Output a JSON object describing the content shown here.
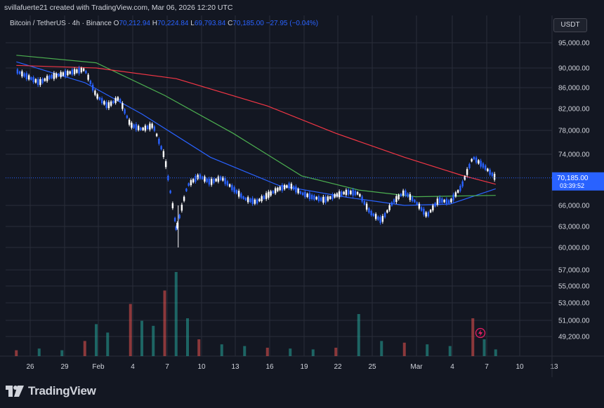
{
  "header": {
    "credit": "svillafuerte21 created with TradingView.com, Mar 06, 2026 12:20 UTC"
  },
  "legend": {
    "symbol": "Bitcoin / TetherUS · 4h · Binance",
    "o_label": "O",
    "o_value": "70,212.94",
    "h_label": "H",
    "h_value": "70,224.84",
    "l_label": "L",
    "l_value": "69,793.84",
    "c_label": "C",
    "c_value": "70,185.00",
    "change": "−27.95 (−0.04%)"
  },
  "quote_currency": "USDT",
  "footer": {
    "brand": "TradingView",
    "logo_icon": "tradingview-logo-icon"
  },
  "colors": {
    "background": "#131722",
    "grid": "#2a2e39",
    "up": "#ffffff",
    "down": "#2962ff",
    "ma_short": "#2962ff",
    "ma_mid": "#4caf50",
    "ma_long": "#f23645",
    "vol_up": "#26a69a",
    "vol_down": "#ef5350",
    "price_label_bg": "#2962ff"
  },
  "chart_data": {
    "type": "candlestick",
    "symbol": "BTC/USDT",
    "timeframe": "4h",
    "y_axis_scale": "log",
    "y_ticks": [
      {
        "value": 95000,
        "label": "95,000.00"
      },
      {
        "value": 90000,
        "label": "90,000.00"
      },
      {
        "value": 86000,
        "label": "86,000.00"
      },
      {
        "value": 82000,
        "label": "82,000.00"
      },
      {
        "value": 78000,
        "label": "78,000.00"
      },
      {
        "value": 74000,
        "label": "74,000.00"
      },
      {
        "value": 66000,
        "label": "66,000.00"
      },
      {
        "value": 63000,
        "label": "63,000.00"
      },
      {
        "value": 60000,
        "label": "60,000.00"
      },
      {
        "value": 57000,
        "label": "57,000.00"
      },
      {
        "value": 55000,
        "label": "55,000.00"
      },
      {
        "value": 53000,
        "label": "53,000.00"
      },
      {
        "value": 51000,
        "label": "51,000.00"
      },
      {
        "value": 49200,
        "label": "49,200.00"
      }
    ],
    "x_ticks": [
      "26",
      "29",
      "Feb",
      "4",
      "7",
      "10",
      "13",
      "16",
      "19",
      "22",
      "25",
      "Mar",
      "4",
      "7",
      "10",
      "13"
    ],
    "last_price": {
      "value": 70185,
      "label": "70,185.00",
      "countdown": "03:39:52"
    },
    "price_path": [
      {
        "date": "2026-01-23",
        "price": 89400
      },
      {
        "date": "2026-01-25",
        "price": 87000
      },
      {
        "date": "2026-01-26",
        "price": 88200
      },
      {
        "date": "2026-01-28",
        "price": 89200
      },
      {
        "date": "2026-01-29",
        "price": 89700
      },
      {
        "date": "2026-01-30",
        "price": 84500
      },
      {
        "date": "2026-01-31",
        "price": 82500
      },
      {
        "date": "2026-02-01",
        "price": 84000
      },
      {
        "date": "2026-02-02",
        "price": 79000
      },
      {
        "date": "2026-02-03",
        "price": 78200
      },
      {
        "date": "2026-02-04",
        "price": 78900
      },
      {
        "date": "2026-02-05",
        "price": 73500
      },
      {
        "date": "2026-02-06",
        "price": 63000
      },
      {
        "date": "2026-02-06",
        "price": 62500
      },
      {
        "date": "2026-02-07",
        "price": 69000
      },
      {
        "date": "2026-02-08",
        "price": 70500
      },
      {
        "date": "2026-02-09",
        "price": 69500
      },
      {
        "date": "2026-02-10",
        "price": 70200
      },
      {
        "date": "2026-02-11",
        "price": 68500
      },
      {
        "date": "2026-02-12",
        "price": 67000
      },
      {
        "date": "2026-02-13",
        "price": 66500
      },
      {
        "date": "2026-02-14",
        "price": 67500
      },
      {
        "date": "2026-02-15",
        "price": 68500
      },
      {
        "date": "2026-02-16",
        "price": 69000
      },
      {
        "date": "2026-02-17",
        "price": 67800
      },
      {
        "date": "2026-02-18",
        "price": 67200
      },
      {
        "date": "2026-02-19",
        "price": 66800
      },
      {
        "date": "2026-02-20",
        "price": 67500
      },
      {
        "date": "2026-02-21",
        "price": 68000
      },
      {
        "date": "2026-02-22",
        "price": 67800
      },
      {
        "date": "2026-02-23",
        "price": 65000
      },
      {
        "date": "2026-02-24",
        "price": 63800
      },
      {
        "date": "2026-02-25",
        "price": 66500
      },
      {
        "date": "2026-02-26",
        "price": 68000
      },
      {
        "date": "2026-02-27",
        "price": 66500
      },
      {
        "date": "2026-02-28",
        "price": 64500
      },
      {
        "date": "2026-03-01",
        "price": 66800
      },
      {
        "date": "2026-03-02",
        "price": 66500
      },
      {
        "date": "2026-03-03",
        "price": 68800
      },
      {
        "date": "2026-03-04",
        "price": 73500
      },
      {
        "date": "2026-03-05",
        "price": 72000
      },
      {
        "date": "2026-03-06",
        "price": 70185
      }
    ],
    "moving_averages": [
      {
        "color": "#2962ff",
        "points": [
          {
            "date": "2026-01-23",
            "price": 91200
          },
          {
            "date": "2026-01-29",
            "price": 87000
          },
          {
            "date": "2026-02-03",
            "price": 81000
          },
          {
            "date": "2026-02-09",
            "price": 73500
          },
          {
            "date": "2026-02-15",
            "price": 69000
          },
          {
            "date": "2026-02-21",
            "price": 67200
          },
          {
            "date": "2026-02-26",
            "price": 66000
          },
          {
            "date": "2026-03-02",
            "price": 66200
          },
          {
            "date": "2026-03-06",
            "price": 68500
          }
        ]
      },
      {
        "color": "#4caf50",
        "points": [
          {
            "date": "2026-01-23",
            "price": 92500
          },
          {
            "date": "2026-01-30",
            "price": 91000
          },
          {
            "date": "2026-02-05",
            "price": 84500
          },
          {
            "date": "2026-02-11",
            "price": 77500
          },
          {
            "date": "2026-02-17",
            "price": 70500
          },
          {
            "date": "2026-02-22",
            "price": 68300
          },
          {
            "date": "2026-02-27",
            "price": 67300
          },
          {
            "date": "2026-03-06",
            "price": 67500
          }
        ]
      },
      {
        "color": "#f23645",
        "points": [
          {
            "date": "2026-01-23",
            "price": 90500
          },
          {
            "date": "2026-01-30",
            "price": 90000
          },
          {
            "date": "2026-02-06",
            "price": 87800
          },
          {
            "date": "2026-02-14",
            "price": 82500
          },
          {
            "date": "2026-02-20",
            "price": 77500
          },
          {
            "date": "2026-02-26",
            "price": 73500
          },
          {
            "date": "2026-03-03",
            "price": 70600
          },
          {
            "date": "2026-03-06",
            "price": 69200
          }
        ]
      }
    ],
    "volume_relative": [
      {
        "date": "2026-01-23",
        "level": 0.07
      },
      {
        "date": "2026-01-25",
        "level": 0.09
      },
      {
        "date": "2026-01-27",
        "level": 0.07
      },
      {
        "date": "2026-01-29",
        "level": 0.18
      },
      {
        "date": "2026-01-30",
        "level": 0.38
      },
      {
        "date": "2026-01-31",
        "level": 0.28
      },
      {
        "date": "2026-02-02",
        "level": 0.62
      },
      {
        "date": "2026-02-03",
        "level": 0.42
      },
      {
        "date": "2026-02-04",
        "level": 0.36
      },
      {
        "date": "2026-02-05",
        "level": 0.78
      },
      {
        "date": "2026-02-06",
        "level": 1.0
      },
      {
        "date": "2026-02-07",
        "level": 0.45
      },
      {
        "date": "2026-02-08",
        "level": 0.2
      },
      {
        "date": "2026-02-10",
        "level": 0.14
      },
      {
        "date": "2026-02-12",
        "level": 0.12
      },
      {
        "date": "2026-02-14",
        "level": 0.1
      },
      {
        "date": "2026-02-16",
        "level": 0.09
      },
      {
        "date": "2026-02-18",
        "level": 0.08
      },
      {
        "date": "2026-02-20",
        "level": 0.1
      },
      {
        "date": "2026-02-22",
        "level": 0.5
      },
      {
        "date": "2026-02-24",
        "level": 0.18
      },
      {
        "date": "2026-02-26",
        "level": 0.16
      },
      {
        "date": "2026-02-28",
        "level": 0.14
      },
      {
        "date": "2026-03-02",
        "level": 0.12
      },
      {
        "date": "2026-03-04",
        "level": 0.45
      },
      {
        "date": "2026-03-05",
        "level": 0.2
      },
      {
        "date": "2026-03-06",
        "level": 0.08
      }
    ]
  }
}
